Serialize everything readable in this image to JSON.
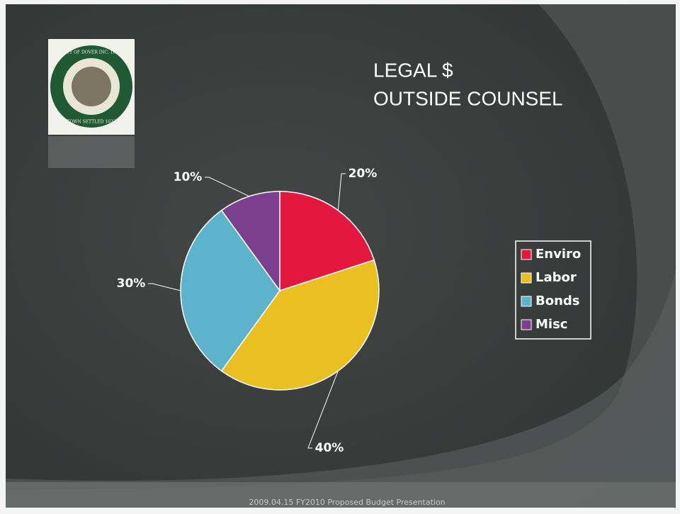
{
  "chart_data": {
    "type": "pie",
    "title": [
      "LEGAL $",
      "OUTSIDE COUNSEL"
    ],
    "categories": [
      "Enviro",
      "Labor",
      "Bonds",
      "Misc"
    ],
    "values": [
      20,
      40,
      30,
      10
    ],
    "value_labels": [
      "20%",
      "40%",
      "30%",
      "10%"
    ],
    "colors": [
      "#e3173f",
      "#e9bf22",
      "#5cb3cb",
      "#7b3f8e"
    ],
    "legend": "right"
  },
  "seal": {
    "top": "CITY OF DOVER INC. 1855",
    "bottom": "TOWN SETTLED 1623"
  },
  "footer": "2009.04.15 FY2010 Proposed Budget Presentation"
}
